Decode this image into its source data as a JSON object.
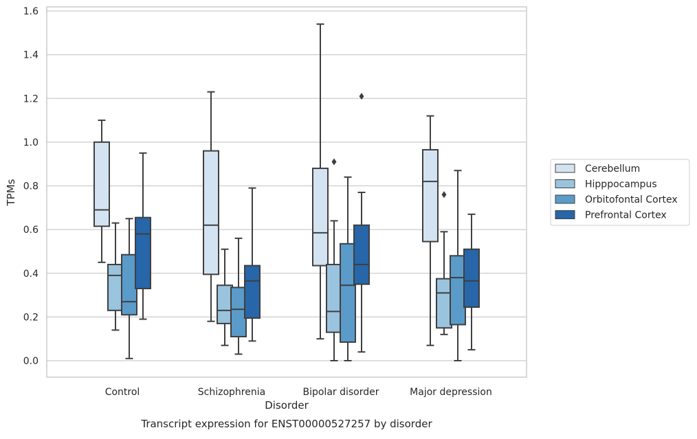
{
  "chart_data": {
    "type": "box",
    "title": "",
    "caption": "Transcript expression for ENST00000527257 by disorder",
    "xlabel": "Disorder",
    "ylabel": "TPMs",
    "ylim": [
      -0.075,
      1.62
    ],
    "yticks": [
      0.0,
      0.2,
      0.4,
      0.6,
      0.8,
      1.0,
      1.2,
      1.4,
      1.6
    ],
    "ytick_labels": [
      "0.0",
      "0.2",
      "0.4",
      "0.6",
      "0.8",
      "1.0",
      "1.2",
      "1.4",
      "1.6"
    ],
    "grid": "horizontal",
    "legend_position": "right-outside",
    "categories": [
      "Control",
      "Schizophrenia",
      "Bipolar disorder",
      "Major depression"
    ],
    "series": [
      {
        "name": "Cerebellum",
        "color": "#d4e3f2",
        "boxes": [
          {
            "whislo": 0.45,
            "q1": 0.615,
            "med": 0.69,
            "q3": 1.0,
            "whishi": 1.1,
            "fliers": []
          },
          {
            "whislo": 0.18,
            "q1": 0.395,
            "med": 0.62,
            "q3": 0.96,
            "whishi": 1.23,
            "fliers": []
          },
          {
            "whislo": 0.1,
            "q1": 0.435,
            "med": 0.585,
            "q3": 0.88,
            "whishi": 1.54,
            "fliers": []
          },
          {
            "whislo": 0.07,
            "q1": 0.545,
            "med": 0.82,
            "q3": 0.965,
            "whishi": 1.12,
            "fliers": []
          }
        ]
      },
      {
        "name": "Hipppocampus",
        "color": "#9ac3de",
        "boxes": [
          {
            "whislo": 0.14,
            "q1": 0.23,
            "med": 0.39,
            "q3": 0.44,
            "whishi": 0.63,
            "fliers": []
          },
          {
            "whislo": 0.07,
            "q1": 0.17,
            "med": 0.23,
            "q3": 0.345,
            "whishi": 0.51,
            "fliers": []
          },
          {
            "whislo": 0.0,
            "q1": 0.13,
            "med": 0.225,
            "q3": 0.44,
            "whishi": 0.64,
            "fliers": [
              0.91
            ]
          },
          {
            "whislo": 0.12,
            "q1": 0.15,
            "med": 0.31,
            "q3": 0.375,
            "whishi": 0.59,
            "fliers": [
              0.76
            ]
          }
        ]
      },
      {
        "name": "Orbitofontal Cortex",
        "color": "#5a9bc9",
        "boxes": [
          {
            "whislo": 0.01,
            "q1": 0.21,
            "med": 0.27,
            "q3": 0.485,
            "whishi": 0.65,
            "fliers": []
          },
          {
            "whislo": 0.03,
            "q1": 0.11,
            "med": 0.235,
            "q3": 0.335,
            "whishi": 0.56,
            "fliers": []
          },
          {
            "whislo": 0.0,
            "q1": 0.085,
            "med": 0.345,
            "q3": 0.535,
            "whishi": 0.84,
            "fliers": []
          },
          {
            "whislo": 0.0,
            "q1": 0.165,
            "med": 0.38,
            "q3": 0.48,
            "whishi": 0.87,
            "fliers": []
          }
        ]
      },
      {
        "name": "Prefrontal Cortex",
        "color": "#2666a9",
        "boxes": [
          {
            "whislo": 0.19,
            "q1": 0.33,
            "med": 0.58,
            "q3": 0.655,
            "whishi": 0.95,
            "fliers": []
          },
          {
            "whislo": 0.09,
            "q1": 0.195,
            "med": 0.365,
            "q3": 0.435,
            "whishi": 0.79,
            "fliers": []
          },
          {
            "whislo": 0.04,
            "q1": 0.35,
            "med": 0.44,
            "q3": 0.62,
            "whishi": 0.77,
            "fliers": [
              1.21
            ]
          },
          {
            "whislo": 0.05,
            "q1": 0.245,
            "med": 0.365,
            "q3": 0.51,
            "whishi": 0.67,
            "fliers": []
          }
        ]
      }
    ]
  }
}
